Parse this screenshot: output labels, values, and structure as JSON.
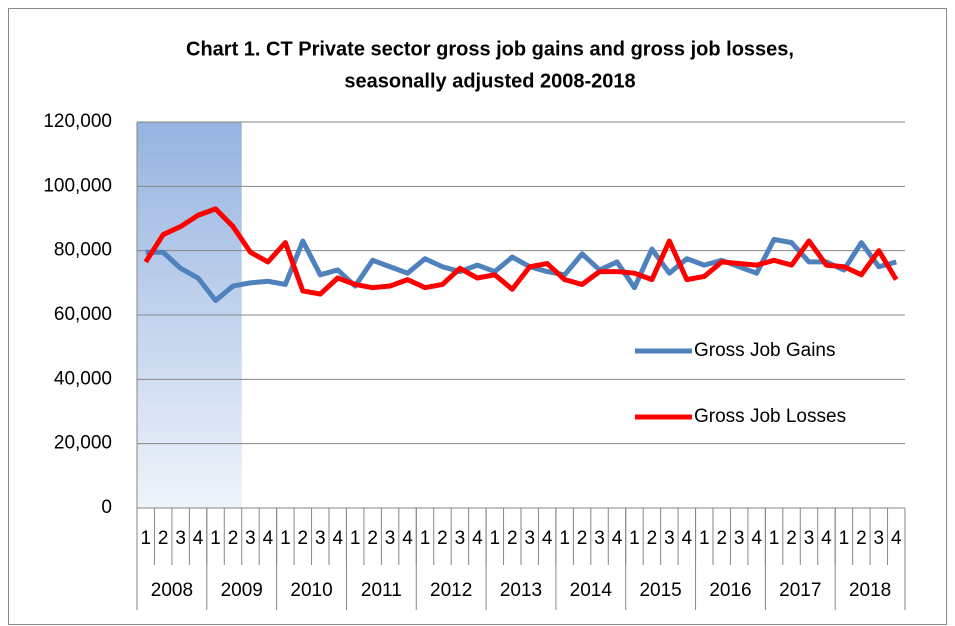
{
  "chart_data": {
    "type": "line",
    "title": "Chart 1. CT Private sector gross job gains and gross job losses,",
    "subtitle": "seasonally adjusted 2008-2018",
    "categories": [
      "1",
      "2",
      "3",
      "4",
      "1",
      "2",
      "3",
      "4",
      "1",
      "2",
      "3",
      "4",
      "1",
      "2",
      "3",
      "4",
      "1",
      "2",
      "3",
      "4",
      "1",
      "2",
      "3",
      "4",
      "1",
      "2",
      "3",
      "4",
      "1",
      "2",
      "3",
      "4",
      "1",
      "2",
      "3",
      "4",
      "1",
      "2",
      "3",
      "4",
      "1",
      "2",
      "3",
      "4"
    ],
    "group_labels": [
      "2008",
      "2009",
      "2010",
      "2011",
      "2012",
      "2013",
      "2014",
      "2015",
      "2016",
      "2017",
      "2018"
    ],
    "series": [
      {
        "name": "Gross Job Gains",
        "color": "#4f81bd",
        "values": [
          79500,
          79500,
          74500,
          71500,
          64500,
          69000,
          70000,
          70500,
          69500,
          83000,
          72500,
          74000,
          69000,
          77000,
          75000,
          73000,
          77500,
          75000,
          73500,
          75500,
          73500,
          78000,
          75000,
          73500,
          72500,
          79000,
          74000,
          76500,
          68500,
          80500,
          73000,
          77500,
          75500,
          77000,
          75000,
          73000,
          83500,
          82500,
          76500,
          76500,
          74000,
          82500,
          75000,
          76500
        ]
      },
      {
        "name": "Gross Job Losses",
        "color": "#ff0000",
        "values": [
          76500,
          85000,
          87500,
          91000,
          93000,
          87500,
          79500,
          76500,
          82500,
          67500,
          66500,
          71500,
          69500,
          68500,
          69000,
          71000,
          68500,
          69500,
          74500,
          71500,
          72500,
          68000,
          75000,
          76000,
          71000,
          69500,
          73500,
          73500,
          73000,
          71000,
          83000,
          71000,
          72000,
          76500,
          76000,
          75500,
          77000,
          75500,
          83000,
          75500,
          75000,
          72500,
          80000,
          71000
        ]
      }
    ],
    "ylim": [
      0,
      120000
    ],
    "yticks": [
      {
        "value": 0,
        "label": "0"
      },
      {
        "value": 20000,
        "label": "20,000"
      },
      {
        "value": 40000,
        "label": "40,000"
      },
      {
        "value": 60000,
        "label": "60,000"
      },
      {
        "value": 80000,
        "label": "80,000"
      },
      {
        "value": 100000,
        "label": "100,000"
      },
      {
        "value": 120000,
        "label": "120,000"
      }
    ],
    "grid": true,
    "legend": "right",
    "shaded_range": [
      0,
      6
    ],
    "shade_color": "#95b3e0"
  }
}
